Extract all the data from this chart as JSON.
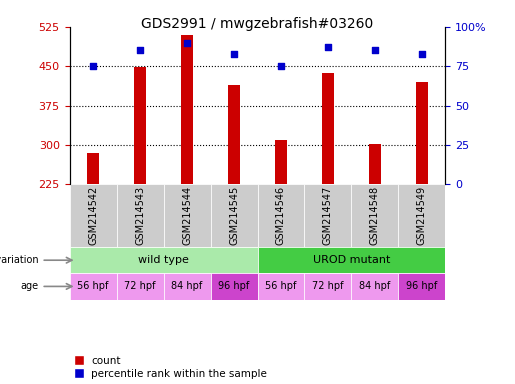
{
  "title": "GDS2991 / mwgzebrafish#03260",
  "samples": [
    "GSM214542",
    "GSM214543",
    "GSM214544",
    "GSM214545",
    "GSM214546",
    "GSM214547",
    "GSM214548",
    "GSM214549"
  ],
  "counts": [
    285,
    448,
    510,
    415,
    310,
    437,
    302,
    420
  ],
  "percentiles": [
    75,
    85,
    90,
    83,
    75,
    87,
    85,
    83
  ],
  "ylim_left": [
    225,
    525
  ],
  "ylim_right": [
    0,
    100
  ],
  "yticks_left": [
    225,
    300,
    375,
    450,
    525
  ],
  "yticks_right": [
    0,
    25,
    50,
    75,
    100
  ],
  "bar_color": "#cc0000",
  "dot_color": "#0000cc",
  "bar_width": 0.25,
  "genotype_groups": [
    {
      "label": "wild type",
      "start": 0,
      "end": 4,
      "color": "#aaeaaa"
    },
    {
      "label": "UROD mutant",
      "start": 4,
      "end": 8,
      "color": "#44cc44"
    }
  ],
  "ages": [
    "56 hpf",
    "72 hpf",
    "84 hpf",
    "96 hpf",
    "56 hpf",
    "72 hpf",
    "84 hpf",
    "96 hpf"
  ],
  "age_colors": [
    "#ee99ee",
    "#ee99ee",
    "#ee99ee",
    "#cc44cc",
    "#ee99ee",
    "#ee99ee",
    "#ee99ee",
    "#cc44cc"
  ],
  "header_color": "#cccccc",
  "xlabel_left_color": "#cc0000",
  "xlabel_right_color": "#0000cc"
}
